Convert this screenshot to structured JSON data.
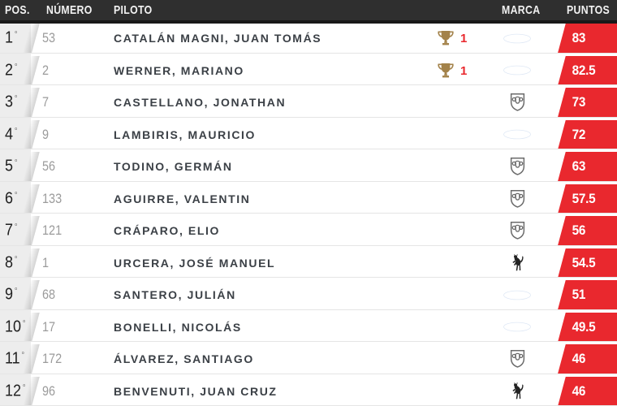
{
  "header": {
    "pos": "POS.",
    "numero": "NÚMERO",
    "piloto": "PILOTO",
    "marca": "MARCA",
    "puntos": "PUNTOS"
  },
  "degree_symbol": "°",
  "colors": {
    "accent_red": "#e9282e",
    "header_bg": "#2f2f2f",
    "trophy_gold": "#a3824a",
    "ford_blue": "#1b52a8"
  },
  "rows": [
    {
      "pos": "1",
      "num": "53",
      "driver": "CATALÁN MAGNI, JUAN TOMÁS",
      "wins": "1",
      "brand": "ford-logo",
      "points": "83"
    },
    {
      "pos": "2",
      "num": "2",
      "driver": "WERNER, MARIANO",
      "wins": "1",
      "brand": "ford-logo",
      "points": "82.5"
    },
    {
      "pos": "3",
      "num": "7",
      "driver": "CASTELLANO, JONATHAN",
      "wins": null,
      "brand": "dodge-logo",
      "points": "73"
    },
    {
      "pos": "4",
      "num": "9",
      "driver": "LAMBIRIS, MAURICIO",
      "wins": null,
      "brand": "ford-logo",
      "points": "72"
    },
    {
      "pos": "5",
      "num": "56",
      "driver": "TODINO, GERMÁN",
      "wins": null,
      "brand": "dodge-logo",
      "points": "63"
    },
    {
      "pos": "6",
      "num": "133",
      "driver": "AGUIRRE, VALENTIN",
      "wins": null,
      "brand": "dodge-logo",
      "points": "57.5"
    },
    {
      "pos": "7",
      "num": "121",
      "driver": "CRÁPARO, ELIO",
      "wins": null,
      "brand": "dodge-logo",
      "points": "56"
    },
    {
      "pos": "8",
      "num": "1",
      "driver": "URCERA, JOSÉ MANUEL",
      "wins": null,
      "brand": "torino-logo",
      "points": "54.5"
    },
    {
      "pos": "9",
      "num": "68",
      "driver": "SANTERO, JULIÁN",
      "wins": null,
      "brand": "ford-logo",
      "points": "51"
    },
    {
      "pos": "10",
      "num": "17",
      "driver": "BONELLI, NICOLÁS",
      "wins": null,
      "brand": "ford-logo",
      "points": "49.5"
    },
    {
      "pos": "11",
      "num": "172",
      "driver": "ÁLVAREZ, SANTIAGO",
      "wins": null,
      "brand": "dodge-logo",
      "points": "46"
    },
    {
      "pos": "12",
      "num": "96",
      "driver": "BENVENUTI, JUAN CRUZ",
      "wins": null,
      "brand": "torino-logo",
      "points": "46"
    }
  ]
}
